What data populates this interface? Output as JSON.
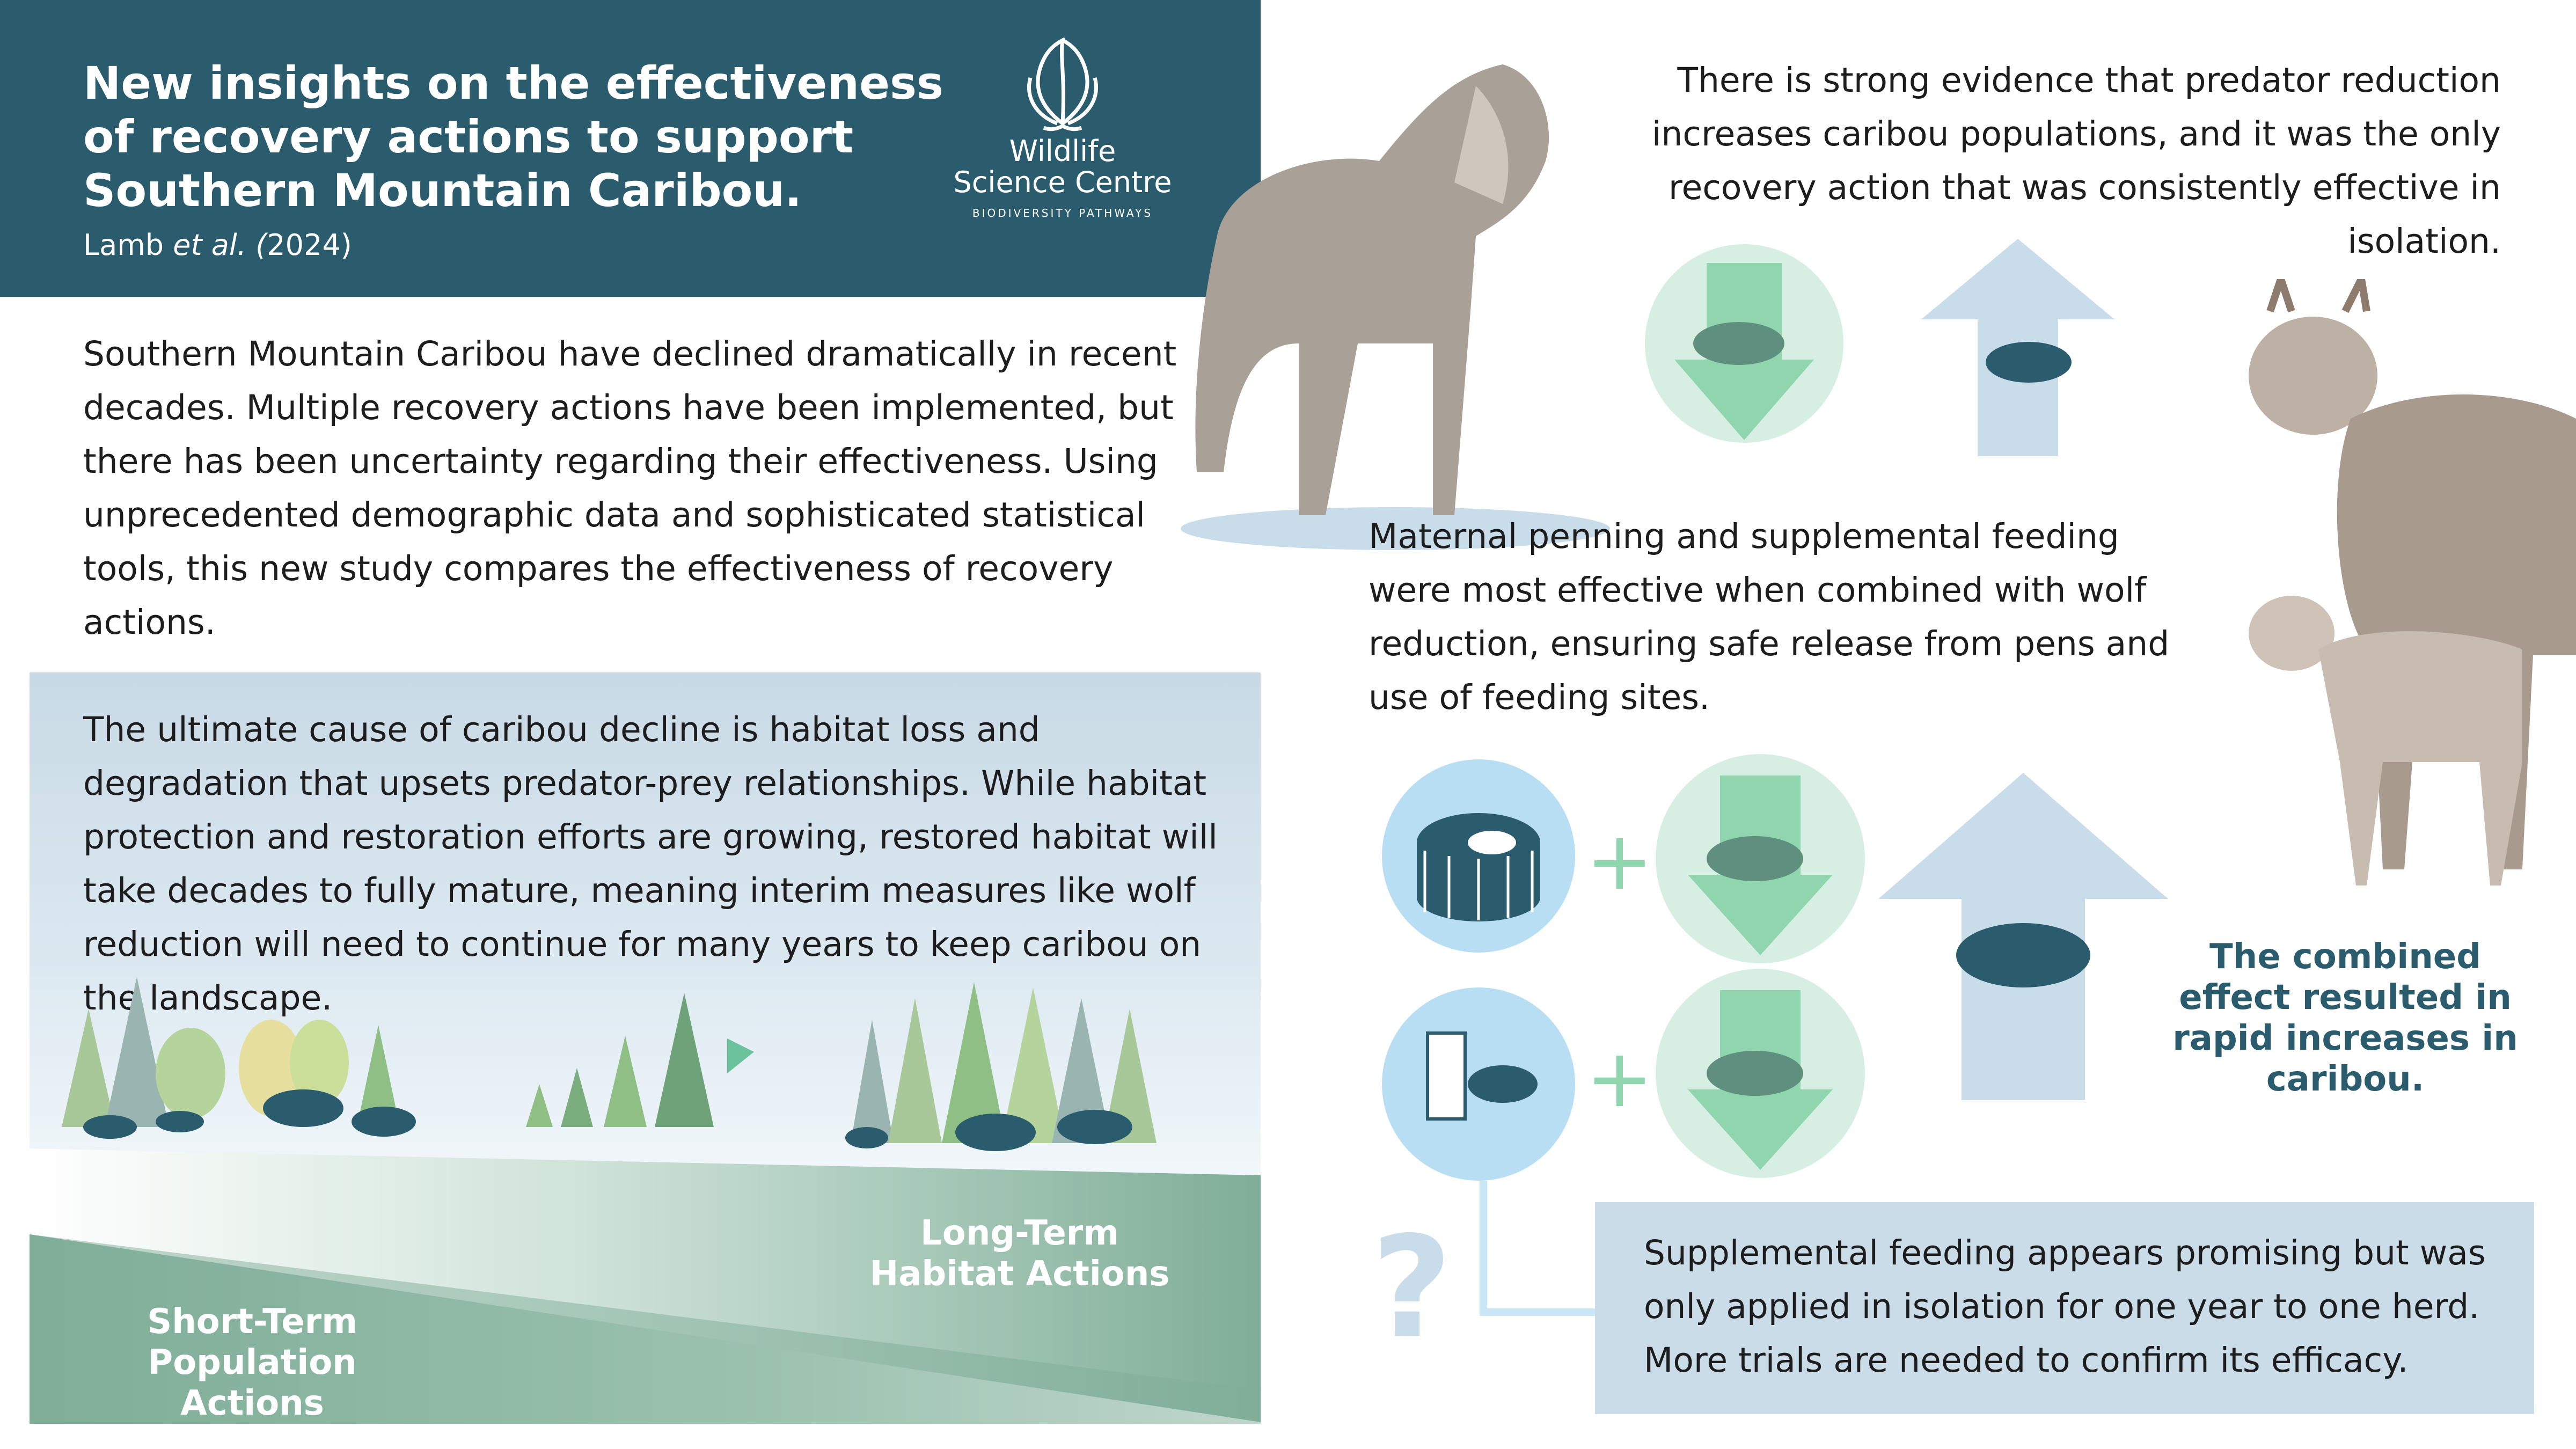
{
  "header": {
    "title": "New insights on the effectiveness of recovery actions to support Southern Mountain Caribou.",
    "citation_author": "Lamb ",
    "citation_etal": "et al. (",
    "citation_year": "2024)"
  },
  "logo": {
    "line1": "Wildlife",
    "line2": "Science Centre",
    "tagline": "BIODIVERSITY PATHWAYS",
    "icon": "leaf-flame-icon"
  },
  "intro_text": "Southern Mountain Caribou have declined dramatically in recent decades. Multiple recovery actions have been implemented, but there has been uncertainty regarding their effectiveness. Using unprecedented demographic data and sophisticated statistical tools, this new study compares the effectiveness of recovery actions.",
  "habitat_panel": {
    "text": "The ultimate cause of caribou decline is habitat loss and degradation that upsets predator-prey relationships. While habitat protection and restoration efforts are growing, restored habitat will take decades to fully mature, meaning interim measures like wolf reduction will need to continue for many years to keep caribou on the landscape.",
    "short_term_label": "Short-Term\nPopulation Actions",
    "long_term_label": "Long-Term\nHabitat Actions"
  },
  "predator_text": "There is strong evidence that predator reduction increases caribou populations, and it was the only recovery action that was consistently effective in isolation.",
  "penning_text": "Maternal penning and supplemental feeding were most effective when combined with wolf reduction, ensuring safe release from pens and use of feeding sites.",
  "combined_text": "The combined effect resulted in rapid increases in caribou.",
  "plus_symbol": "+",
  "question_mark": "?",
  "feeding_note": "Supplemental feeding appears promising but was only applied in isolation for one year to one herd. More trials are needed to confirm its efficacy.",
  "colors": {
    "header_bg": "#2a5c6e",
    "dark_teal": "#2a5c6e",
    "mint": "#d7efe3",
    "arrow_green": "#8fd6ae",
    "light_blue": "#b7def2",
    "note_bg": "#c9dce8",
    "ground_green": "#7fae98"
  },
  "icons": [
    "wolf-icon",
    "caribou-icon",
    "maternal-pen-icon",
    "feeding-station-icon",
    "down-arrow-icon",
    "up-arrow-icon"
  ]
}
